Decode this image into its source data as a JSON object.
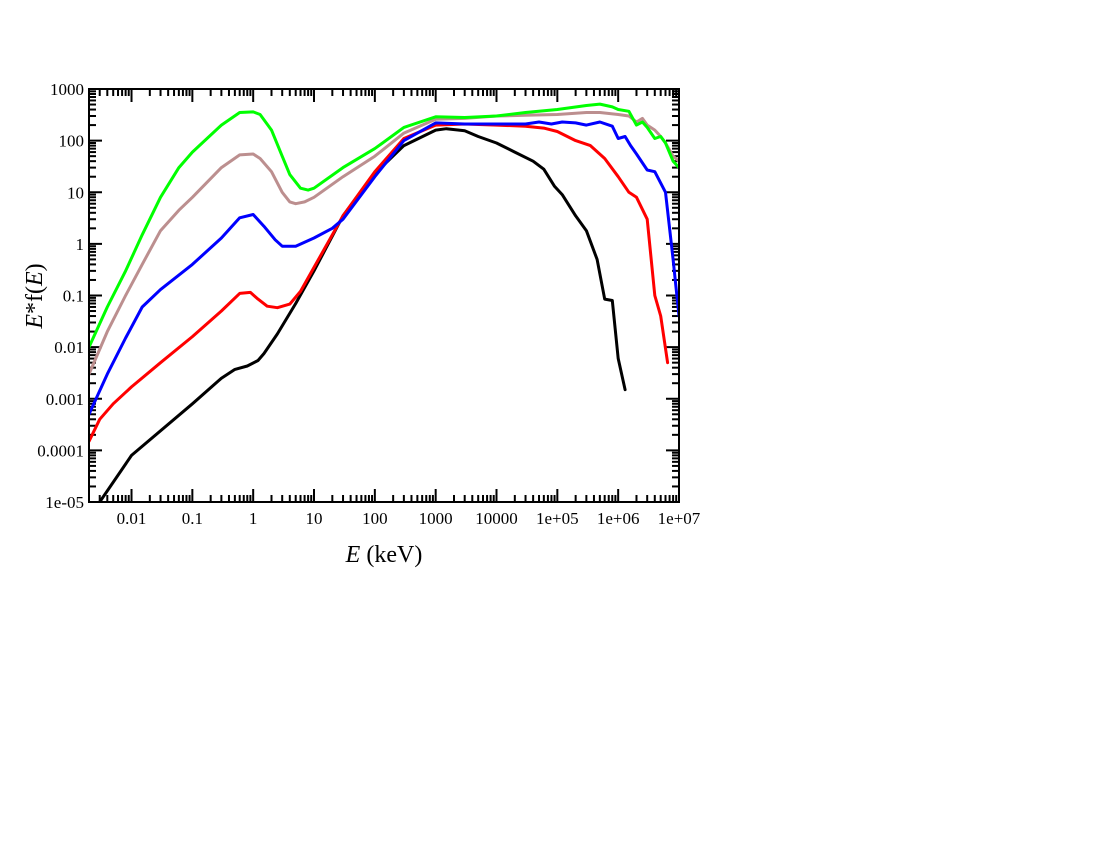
{
  "chart_data": {
    "type": "line",
    "title": "",
    "xlabel": "E (keV)",
    "ylabel": "E*f(E)",
    "xlabel_parts": {
      "var": "E",
      "rest": " (keV)"
    },
    "ylabel_parts": {
      "var1": "E",
      "mid": "*f(",
      "var2": "E",
      "end": ")"
    },
    "x_scale": "log",
    "y_scale": "log",
    "xlim": [
      0.002,
      10000000
    ],
    "ylim": [
      1e-05,
      1000
    ],
    "x_ticks": [
      {
        "value": 0.01,
        "label": "0.01"
      },
      {
        "value": 0.1,
        "label": "0.1"
      },
      {
        "value": 1,
        "label": "1"
      },
      {
        "value": 10,
        "label": "10"
      },
      {
        "value": 100,
        "label": "100"
      },
      {
        "value": 1000,
        "label": "1000"
      },
      {
        "value": 10000,
        "label": "10000"
      },
      {
        "value": 100000,
        "label": "1e+05"
      },
      {
        "value": 1000000,
        "label": "1e+06"
      },
      {
        "value": 10000000,
        "label": "1e+07"
      }
    ],
    "y_ticks": [
      {
        "value": 1e-05,
        "label": "1e-05"
      },
      {
        "value": 0.0001,
        "label": "0.0001"
      },
      {
        "value": 0.001,
        "label": "0.001"
      },
      {
        "value": 0.01,
        "label": "0.01"
      },
      {
        "value": 0.1,
        "label": "0.1"
      },
      {
        "value": 1,
        "label": "1"
      },
      {
        "value": 10,
        "label": "10"
      },
      {
        "value": 100,
        "label": "100"
      },
      {
        "value": 1000,
        "label": "1000"
      }
    ],
    "grid": false,
    "legend": "none",
    "series": [
      {
        "color": "#000000",
        "points": [
          [
            0.003,
            1e-05
          ],
          [
            0.01,
            8e-05
          ],
          [
            0.1,
            0.0008
          ],
          [
            0.3,
            0.0025
          ],
          [
            0.5,
            0.0037
          ],
          [
            0.8,
            0.0043
          ],
          [
            1.2,
            0.0055
          ],
          [
            1.5,
            0.0075
          ],
          [
            2.5,
            0.018
          ],
          [
            5,
            0.07
          ],
          [
            10,
            0.3
          ],
          [
            30,
            3.5
          ],
          [
            100,
            23
          ],
          [
            300,
            80
          ],
          [
            1000,
            160
          ],
          [
            1500,
            170
          ],
          [
            3000,
            155
          ],
          [
            5000,
            120
          ],
          [
            10000,
            90
          ],
          [
            20000,
            60
          ],
          [
            40000,
            40
          ],
          [
            60000,
            28
          ],
          [
            90000,
            13
          ],
          [
            120000,
            9
          ],
          [
            200000,
            3.5
          ],
          [
            300000,
            1.8
          ],
          [
            450000,
            0.5
          ],
          [
            600000,
            0.085
          ],
          [
            800000,
            0.08
          ],
          [
            1000000,
            0.006
          ],
          [
            1300000,
            0.0015
          ]
        ]
      },
      {
        "color": "#ff0000",
        "points": [
          [
            0.002,
            0.00015
          ],
          [
            0.003,
            0.0004
          ],
          [
            0.005,
            0.0008
          ],
          [
            0.01,
            0.0017
          ],
          [
            0.03,
            0.005
          ],
          [
            0.1,
            0.016
          ],
          [
            0.3,
            0.05
          ],
          [
            0.6,
            0.11
          ],
          [
            0.9,
            0.115
          ],
          [
            1.2,
            0.085
          ],
          [
            1.7,
            0.062
          ],
          [
            2.5,
            0.058
          ],
          [
            4,
            0.068
          ],
          [
            6,
            0.12
          ],
          [
            10,
            0.35
          ],
          [
            30,
            3.5
          ],
          [
            100,
            25
          ],
          [
            300,
            110
          ],
          [
            1000,
            200
          ],
          [
            3000,
            210
          ],
          [
            10000,
            200
          ],
          [
            30000,
            190
          ],
          [
            60000,
            175
          ],
          [
            100000,
            150
          ],
          [
            200000,
            100
          ],
          [
            350000,
            80
          ],
          [
            600000,
            45
          ],
          [
            1000000,
            20
          ],
          [
            1500000,
            10
          ],
          [
            2000000,
            8
          ],
          [
            3000000,
            3
          ],
          [
            4000000,
            0.1
          ],
          [
            5000000,
            0.04
          ],
          [
            6500000,
            0.005
          ]
        ]
      },
      {
        "color": "#0000ff",
        "points": [
          [
            0.002,
            0.0005
          ],
          [
            0.004,
            0.003
          ],
          [
            0.008,
            0.015
          ],
          [
            0.015,
            0.06
          ],
          [
            0.03,
            0.13
          ],
          [
            0.1,
            0.4
          ],
          [
            0.3,
            1.3
          ],
          [
            0.6,
            3.2
          ],
          [
            1,
            3.7
          ],
          [
            1.5,
            2.2
          ],
          [
            2.3,
            1.2
          ],
          [
            3,
            0.9
          ],
          [
            5,
            0.9
          ],
          [
            10,
            1.3
          ],
          [
            20,
            2
          ],
          [
            30,
            3
          ],
          [
            100,
            20
          ],
          [
            300,
            100
          ],
          [
            1000,
            220
          ],
          [
            3000,
            210
          ],
          [
            10000,
            210
          ],
          [
            30000,
            210
          ],
          [
            50000,
            230
          ],
          [
            80000,
            210
          ],
          [
            120000,
            230
          ],
          [
            200000,
            220
          ],
          [
            300000,
            200
          ],
          [
            500000,
            230
          ],
          [
            800000,
            190
          ],
          [
            1000000,
            110
          ],
          [
            1300000,
            120
          ],
          [
            1600000,
            80
          ],
          [
            2000000,
            55
          ],
          [
            3000000,
            27
          ],
          [
            4000000,
            25
          ],
          [
            6000000,
            10
          ],
          [
            8000000,
            0.5
          ],
          [
            10000000,
            0.04
          ]
        ]
      },
      {
        "color": "#bc8f8f",
        "points": [
          [
            0.002,
            0.003
          ],
          [
            0.004,
            0.02
          ],
          [
            0.008,
            0.1
          ],
          [
            0.015,
            0.4
          ],
          [
            0.03,
            1.8
          ],
          [
            0.06,
            4.5
          ],
          [
            0.1,
            8
          ],
          [
            0.3,
            30
          ],
          [
            0.6,
            53
          ],
          [
            1,
            55
          ],
          [
            1.3,
            45
          ],
          [
            2,
            25
          ],
          [
            3,
            10
          ],
          [
            4,
            6.5
          ],
          [
            5,
            6
          ],
          [
            7,
            6.5
          ],
          [
            10,
            8
          ],
          [
            30,
            20
          ],
          [
            100,
            50
          ],
          [
            300,
            140
          ],
          [
            1000,
            260
          ],
          [
            3000,
            270
          ],
          [
            10000,
            300
          ],
          [
            30000,
            310
          ],
          [
            100000,
            320
          ],
          [
            300000,
            350
          ],
          [
            500000,
            350
          ],
          [
            1000000,
            320
          ],
          [
            1500000,
            300
          ],
          [
            2000000,
            230
          ],
          [
            2500000,
            270
          ],
          [
            3000000,
            200
          ],
          [
            4000000,
            160
          ],
          [
            5000000,
            120
          ],
          [
            6000000,
            90
          ],
          [
            8000000,
            50
          ],
          [
            10000000,
            40
          ]
        ]
      },
      {
        "color": "#00ff00",
        "points": [
          [
            0.002,
            0.01
          ],
          [
            0.004,
            0.06
          ],
          [
            0.008,
            0.3
          ],
          [
            0.015,
            1.5
          ],
          [
            0.03,
            8
          ],
          [
            0.06,
            30
          ],
          [
            0.1,
            60
          ],
          [
            0.3,
            200
          ],
          [
            0.6,
            350
          ],
          [
            1,
            360
          ],
          [
            1.3,
            320
          ],
          [
            2,
            160
          ],
          [
            3,
            50
          ],
          [
            4,
            22
          ],
          [
            6,
            12
          ],
          [
            8,
            11
          ],
          [
            10,
            12
          ],
          [
            30,
            30
          ],
          [
            100,
            70
          ],
          [
            300,
            180
          ],
          [
            1000,
            290
          ],
          [
            3000,
            280
          ],
          [
            10000,
            300
          ],
          [
            30000,
            350
          ],
          [
            100000,
            400
          ],
          [
            300000,
            480
          ],
          [
            500000,
            510
          ],
          [
            800000,
            450
          ],
          [
            1000000,
            400
          ],
          [
            1500000,
            370
          ],
          [
            2000000,
            200
          ],
          [
            2500000,
            230
          ],
          [
            3000000,
            180
          ],
          [
            4000000,
            110
          ],
          [
            5000000,
            120
          ],
          [
            6000000,
            90
          ],
          [
            8000000,
            40
          ],
          [
            10000000,
            30
          ]
        ]
      }
    ]
  }
}
